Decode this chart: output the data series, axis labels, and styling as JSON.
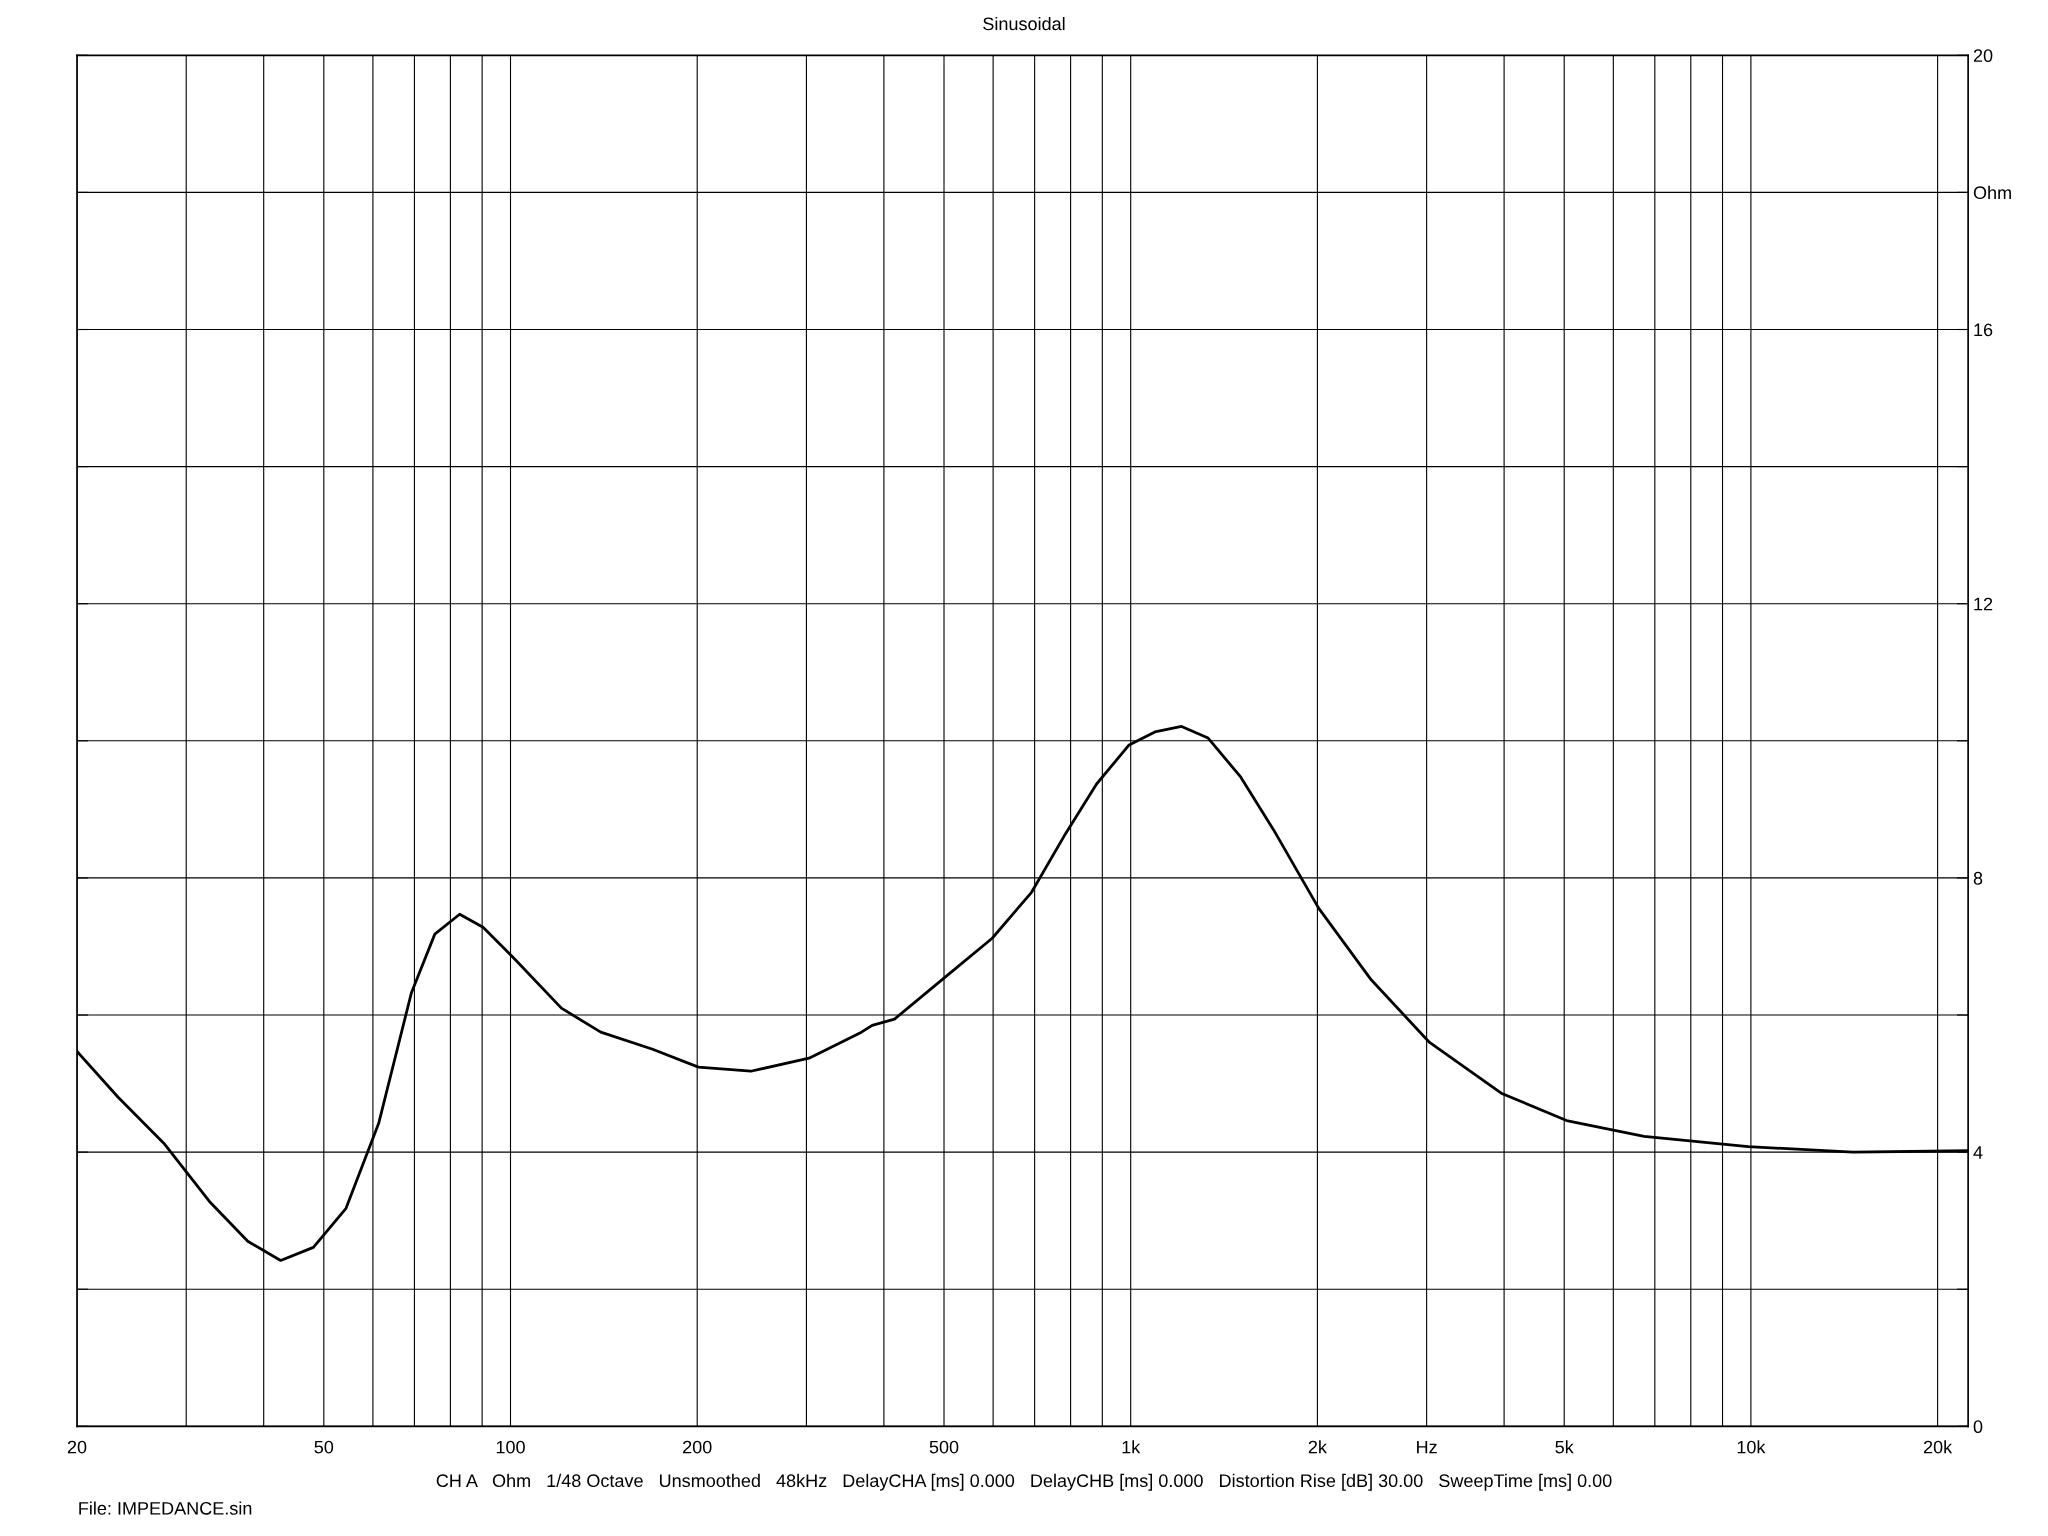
{
  "chart_data": {
    "type": "line",
    "title": "Sinusoidal",
    "annotations": [
      "CH A   Ohm   1/48 Octave   Unsmoothed   48kHz   DelayCHA [ms] 0.000   DelayCHB [ms] 0.000   Distortion Rise [dB] 30.00   SweepTime [ms] 0.00",
      "File: IMPEDANCE.sin"
    ],
    "log": "x",
    "grid": true,
    "legend": false,
    "marker": "none",
    "line_style": "solid",
    "xlim": [
      20,
      22400
    ],
    "ylim": [
      0,
      20
    ],
    "xticks": [
      20,
      {
        "value": 30,
        "label": null
      },
      {
        "value": 40,
        "label": null
      },
      50,
      {
        "value": 60,
        "label": null
      },
      {
        "value": 70,
        "label": null
      },
      {
        "value": 80,
        "label": null
      },
      {
        "value": 90,
        "label": null
      },
      100,
      200,
      {
        "value": 300,
        "label": null
      },
      {
        "value": 400,
        "label": null
      },
      500,
      {
        "value": 600,
        "label": null
      },
      {
        "value": 700,
        "label": null
      },
      {
        "value": 800,
        "label": null
      },
      {
        "value": 900,
        "label": null
      },
      {
        "value": 1000,
        "label": "1k"
      },
      {
        "value": 2000,
        "label": "2k"
      },
      {
        "value": 3000,
        "label": "Hz"
      },
      {
        "value": 4000,
        "label": null
      },
      {
        "value": 5000,
        "label": "5k"
      },
      {
        "value": 6000,
        "label": null
      },
      {
        "value": 7000,
        "label": null
      },
      {
        "value": 8000,
        "label": null
      },
      {
        "value": 9000,
        "label": null
      },
      {
        "value": 10000,
        "label": "10k"
      },
      {
        "value": 20000,
        "label": "20k"
      }
    ],
    "yticks": [
      0,
      {
        "value": 2,
        "label": null
      },
      4,
      {
        "value": 6,
        "label": null
      },
      8,
      {
        "value": 10,
        "label": null
      },
      12,
      {
        "value": 14,
        "label": null
      },
      16,
      {
        "value": 18,
        "label": "Ohm"
      },
      20
    ],
    "series": [
      {
        "color": "#000000",
        "x": [
          20,
          23.3,
          27.6,
          32.7,
          37.7,
          42.6,
          48.1,
          54.3,
          61.3,
          69.2,
          75.5,
          82.8,
          90.3,
          102,
          120.8,
          139.8,
          169.5,
          200.9,
          244,
          303,
          368,
          383,
          416,
          505,
          598,
          692,
          781,
          881,
          994,
          1094,
          1208,
          1333,
          1505,
          1700,
          2009,
          2444,
          3033,
          3958,
          5044,
          6727,
          9900,
          14600,
          22400
        ],
        "values": [
          5.47,
          4.8,
          4.13,
          3.28,
          2.7,
          2.42,
          2.61,
          3.18,
          4.42,
          6.32,
          7.18,
          7.47,
          7.28,
          6.8,
          6.1,
          5.75,
          5.5,
          5.24,
          5.18,
          5.37,
          5.75,
          5.85,
          5.94,
          6.57,
          7.12,
          7.79,
          8.61,
          9.37,
          9.94,
          10.13,
          10.21,
          10.04,
          9.47,
          8.7,
          7.56,
          6.51,
          5.6,
          4.86,
          4.46,
          4.23,
          4.08,
          4.0,
          4.02
        ]
      }
    ]
  }
}
